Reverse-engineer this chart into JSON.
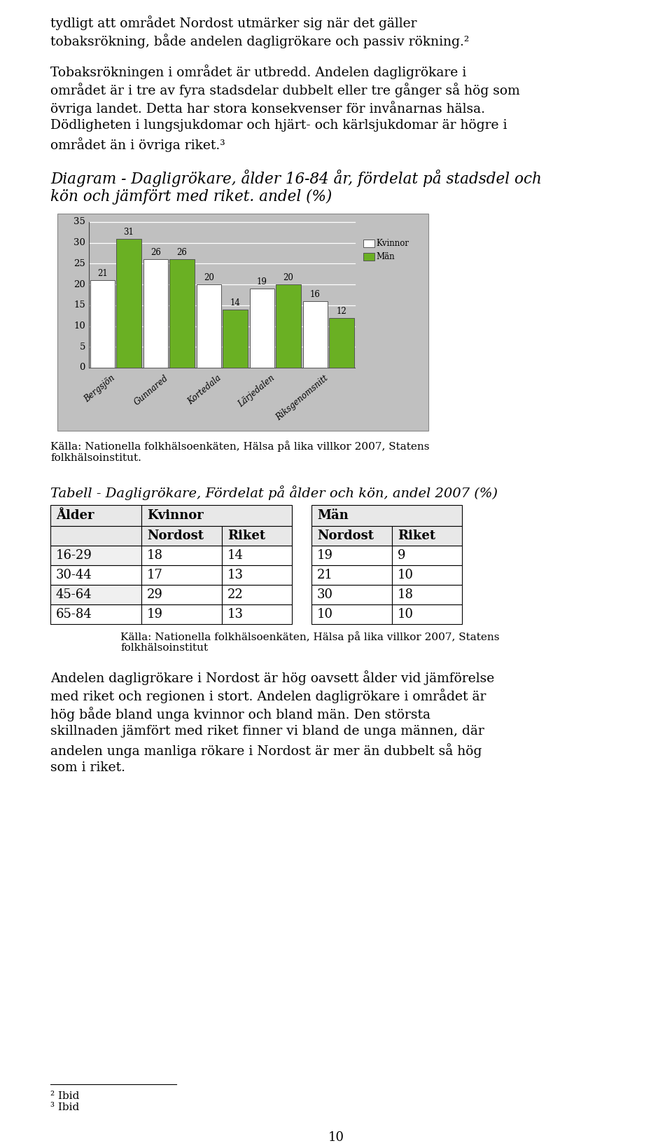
{
  "page_title_lines": [
    "tydligt att området Nordost utmärker sig när det gäller",
    "tobaksrökning, både andelen dagligrökare och passiv rökning.²"
  ],
  "para1_lines": [
    "Tobaksrökningen i området är utbredd. Andelen dagligrökare i",
    "området är i tre av fyra stadsdelar dubbelt eller tre gånger så hög som",
    "övriga landet. Detta har stora konsekvenser för invånarnas hälsa.",
    "Dödligheten i lungsjukdomar och hjärt- och kärlsjukdomar är högre i",
    "området än i övriga riket.³"
  ],
  "chart_title_line1": "Diagram - Dagligrökare, ålder 16-84 år, fördelat på stadsdel och",
  "chart_title_line2": "kön och jämfört med riket. andel (%)",
  "categories": [
    "Bergsjön",
    "Gunnared",
    "Kortedala",
    "Lärjedalen",
    "Riksgenomsnitt"
  ],
  "kvinnor_values": [
    21,
    26,
    20,
    19,
    16
  ],
  "man_values": [
    31,
    26,
    14,
    20,
    12
  ],
  "bar_color_kvinnor": "#ffffff",
  "bar_color_man": "#6ab023",
  "bar_edgecolor": "#555555",
  "chart_bg": "#c0c0c0",
  "ylim_max": 35,
  "yticks": [
    0,
    5,
    10,
    15,
    20,
    25,
    30,
    35
  ],
  "legend_labels": [
    "Kvinnor",
    "Män"
  ],
  "source_chart_lines": [
    "Källa: Nationella folkhälsoenkäten, Hälsa på lika villkor 2007, Statens",
    "folkhälsoinstitut."
  ],
  "table_title": "Tabell - Dagligrökare, Fördelat på ålder och kön, andel 2007 (%)",
  "table_age_labels": [
    "Ålder",
    "16-29",
    "30-44",
    "45-64",
    "65-84"
  ],
  "table_kv_nordost": [
    18,
    17,
    29,
    19
  ],
  "table_kv_riket": [
    14,
    13,
    22,
    13
  ],
  "table_man_nordost": [
    19,
    21,
    30,
    10
  ],
  "table_man_riket": [
    9,
    10,
    18,
    10
  ],
  "source_table_lines": [
    "Källa: Nationella folkhälsoenkäten, Hälsa på lika villkor 2007, Statens",
    "folkhälsoinstitut"
  ],
  "para2_lines": [
    "Andelen dagligrökare i Nordost är hög oavsett ålder vid jämförelse",
    "med riket och regionen i stort. Andelen dagligrökare i området är",
    "hög både bland unga kvinnor och bland män. Den största",
    "skillnaden jämfört med riket finner vi bland de unga männen, där",
    "andelen unga manliga rökare i Nordost är mer än dubbelt så hög",
    "som i riket."
  ],
  "footnote2": "² Ibid",
  "footnote3": "³ Ibid",
  "page_number": "10",
  "body_fontsize": 13.5,
  "chart_title_fontsize": 15.5,
  "source_fontsize": 11,
  "table_title_fontsize": 14,
  "table_header_fontsize": 13,
  "table_data_fontsize": 13,
  "footnote_fontsize": 11,
  "page_num_fontsize": 13
}
